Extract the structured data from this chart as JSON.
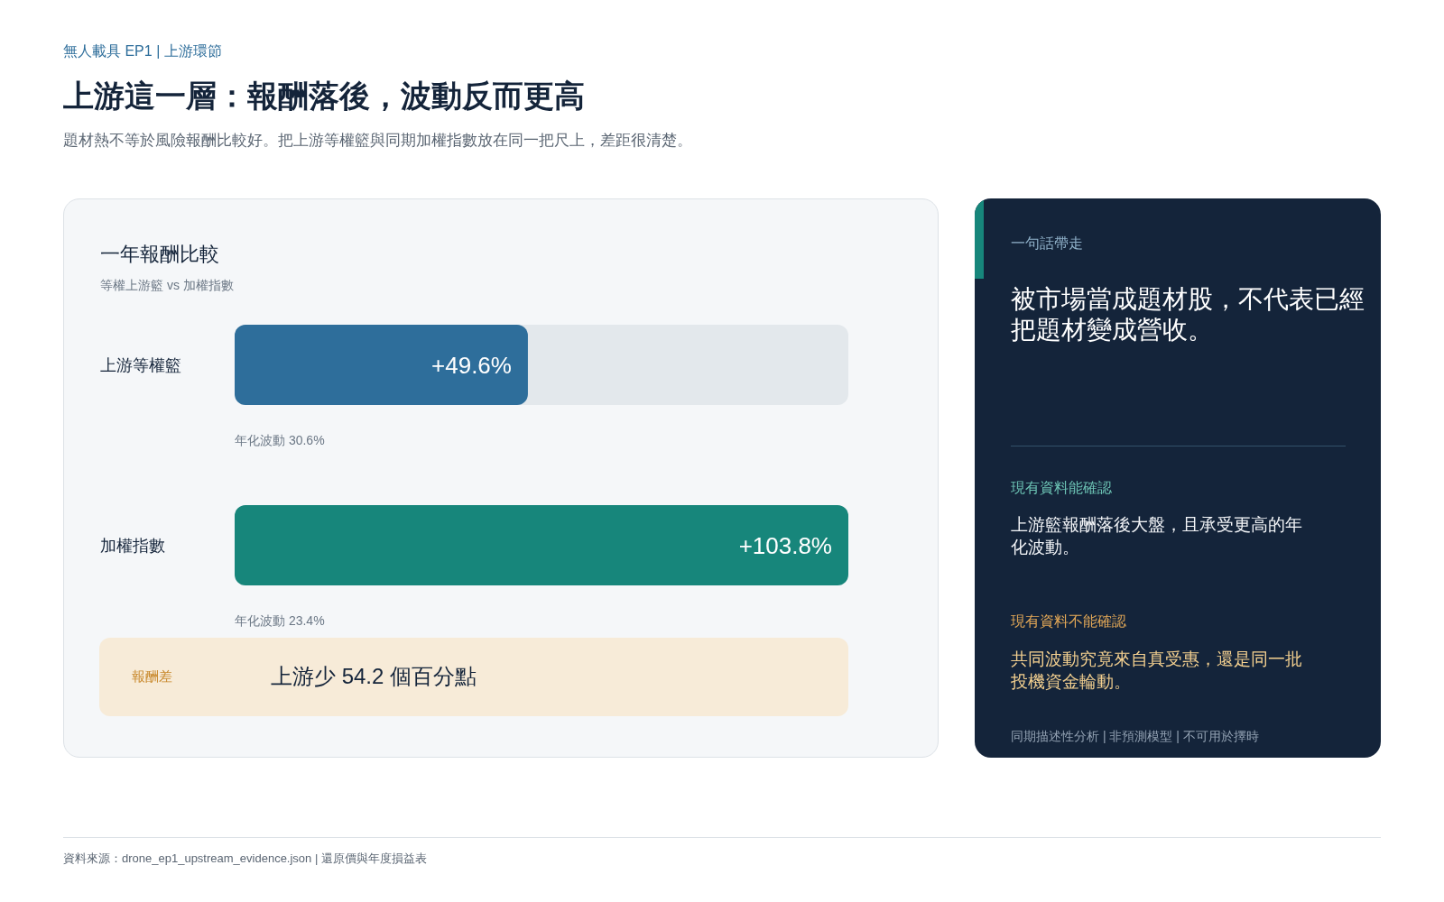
{
  "chart_data": {
    "type": "bar",
    "orientation": "horizontal",
    "title": "上游這一層：報酬落後，波動反而更高",
    "subtitle": "題材熱不等於風險報酬比較好。把上游等權籃與同期加權指數放在同一把尺上，差距很清楚。",
    "categories": [
      "上游等權籃",
      "加權指數"
    ],
    "values": [
      49.6,
      103.8
    ],
    "colors": [
      "#2e6e9b",
      "#17867b"
    ],
    "value_labels": [
      "+49.6%",
      "+103.8%"
    ],
    "annotations": [
      "無人載具 EP1 | 上游環節",
      "一年報酬比較",
      "等權上游籃 vs 加權指數",
      "年化波動 30.6%",
      "年化波動 23.4%",
      "報酬差",
      "上游少 54.2 個百分點",
      "一句話帶走",
      "被市場當成題材股，不代表已經把題材變成營收。",
      "現有資料能確認",
      "上游籃報酬落後大盤，且承受更高的年化波動。",
      "現有資料不能確認",
      "共同波動究竟來自真受惠，還是同一批投機資金輪動。",
      "同期描述性分析 | 非預測模型 | 不可用於擇時",
      "資料來源：drone_ep1_upstream_evidence.json | 還原價與年度損益表"
    ]
  }
}
